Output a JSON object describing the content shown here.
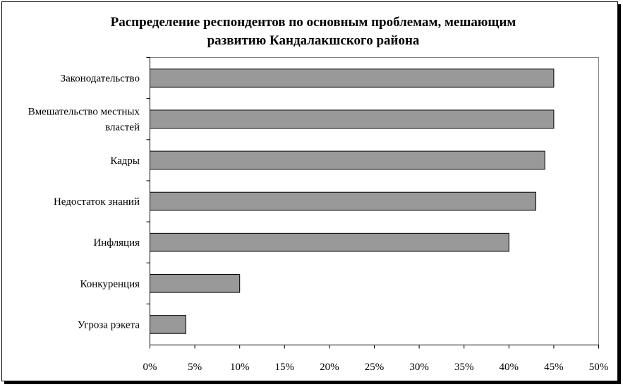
{
  "chart_data": {
    "type": "bar",
    "orientation": "horizontal",
    "title_lines": [
      "Распределение респондентов по основным проблемам, мешающим",
      "развитию Кандалакшского района"
    ],
    "categories": [
      [
        "Законодательство"
      ],
      [
        "Вмешательство местных",
        "властей"
      ],
      [
        "Кадры"
      ],
      [
        "Недостаток знаний"
      ],
      [
        "Инфляция"
      ],
      [
        "Конкуренция"
      ],
      [
        "Угроза рэкета"
      ]
    ],
    "values": [
      45,
      45,
      44,
      43,
      40,
      10,
      4
    ],
    "xlim": [
      0,
      50
    ],
    "xticks": [
      0,
      5,
      10,
      15,
      20,
      25,
      30,
      35,
      40,
      45,
      50
    ],
    "tick_suffix": "%",
    "bar_color": "#999999",
    "grid": false
  }
}
